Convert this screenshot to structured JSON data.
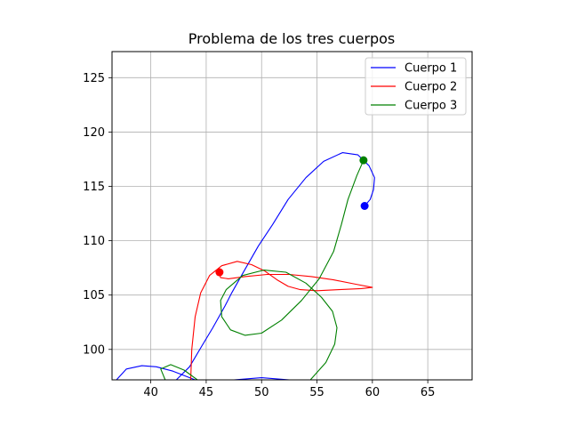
{
  "chart_data": {
    "type": "line",
    "title": "Problema de los tres cuerpos",
    "xlabel": "",
    "ylabel": "",
    "xlim": [
      36.5,
      69.0
    ],
    "ylim": [
      97.2,
      127.4
    ],
    "x_ticks": [
      "40",
      "45",
      "50",
      "55",
      "60",
      "65"
    ],
    "y_ticks": [
      "100",
      "105",
      "110",
      "115",
      "120",
      "125"
    ],
    "grid": true,
    "legend_position": "upper right",
    "series": [
      {
        "name": "Cuerpo 1",
        "color": "#0000ff",
        "points": [
          [
            36.9,
            97.2
          ],
          [
            37.8,
            98.2
          ],
          [
            39.2,
            98.5
          ],
          [
            40.5,
            98.4
          ],
          [
            42.0,
            98.0
          ],
          [
            43.0,
            97.6
          ],
          [
            44.0,
            97.2
          ],
          [
            42.3,
            97.2
          ],
          [
            43.5,
            98.4
          ],
          [
            44.6,
            100.3
          ],
          [
            45.6,
            102.0
          ],
          [
            46.7,
            104.0
          ],
          [
            47.3,
            105.2
          ],
          [
            48.3,
            107.0
          ],
          [
            49.7,
            109.5
          ],
          [
            51.0,
            111.5
          ],
          [
            52.4,
            113.8
          ],
          [
            54.0,
            115.8
          ],
          [
            55.6,
            117.3
          ],
          [
            57.3,
            118.1
          ],
          [
            58.7,
            117.9
          ],
          [
            59.7,
            116.9
          ],
          [
            60.2,
            115.8
          ],
          [
            60.1,
            114.7
          ],
          [
            59.8,
            113.8
          ],
          [
            59.3,
            113.2
          ]
        ],
        "extra_segments": [
          [
            [
              47.5,
              97.2
            ],
            [
              50.0,
              97.4
            ],
            [
              52.5,
              97.2
            ]
          ]
        ],
        "marker": [
          59.3,
          113.2
        ]
      },
      {
        "name": "Cuerpo 2",
        "color": "#ff0000",
        "points": [
          [
            43.6,
            97.2
          ],
          [
            43.7,
            100.0
          ],
          [
            44.0,
            103.0
          ],
          [
            44.5,
            105.2
          ],
          [
            45.3,
            106.8
          ],
          [
            46.4,
            107.7
          ],
          [
            47.8,
            108.1
          ],
          [
            49.1,
            107.8
          ],
          [
            50.3,
            107.2
          ],
          [
            51.4,
            106.4
          ],
          [
            52.4,
            105.8
          ],
          [
            53.5,
            105.5
          ],
          [
            55.0,
            105.4
          ],
          [
            57.0,
            105.5
          ],
          [
            59.0,
            105.6
          ],
          [
            60.0,
            105.7
          ],
          [
            58.5,
            106.0
          ],
          [
            56.5,
            106.4
          ],
          [
            54.5,
            106.7
          ],
          [
            52.5,
            106.9
          ],
          [
            50.5,
            106.9
          ],
          [
            48.5,
            106.7
          ],
          [
            47.0,
            106.5
          ],
          [
            46.3,
            106.6
          ],
          [
            46.2,
            106.9
          ],
          [
            46.2,
            107.1
          ]
        ],
        "extra_segments": [],
        "marker": [
          46.2,
          107.1
        ]
      },
      {
        "name": "Cuerpo 3",
        "color": "#008000",
        "points": [
          [
            41.3,
            97.2
          ],
          [
            40.9,
            98.2
          ],
          [
            41.8,
            98.6
          ],
          [
            43.0,
            98.1
          ],
          [
            44.2,
            97.2
          ],
          [
            54.4,
            97.2
          ],
          [
            55.8,
            98.8
          ],
          [
            56.6,
            100.5
          ],
          [
            56.8,
            102.0
          ],
          [
            56.4,
            103.5
          ],
          [
            55.4,
            104.8
          ],
          [
            54.0,
            106.1
          ],
          [
            52.2,
            107.1
          ],
          [
            50.2,
            107.3
          ],
          [
            48.3,
            106.8
          ],
          [
            46.8,
            105.5
          ],
          [
            46.3,
            104.5
          ],
          [
            46.4,
            103.0
          ],
          [
            47.2,
            101.8
          ],
          [
            48.5,
            101.3
          ],
          [
            50.0,
            101.5
          ],
          [
            51.8,
            102.7
          ],
          [
            53.6,
            104.5
          ],
          [
            55.2,
            106.5
          ],
          [
            56.5,
            109.0
          ],
          [
            57.2,
            111.5
          ],
          [
            57.8,
            113.8
          ],
          [
            58.6,
            116.0
          ],
          [
            59.2,
            117.4
          ]
        ],
        "extra_segments": [],
        "marker": [
          59.2,
          117.4
        ]
      }
    ]
  }
}
